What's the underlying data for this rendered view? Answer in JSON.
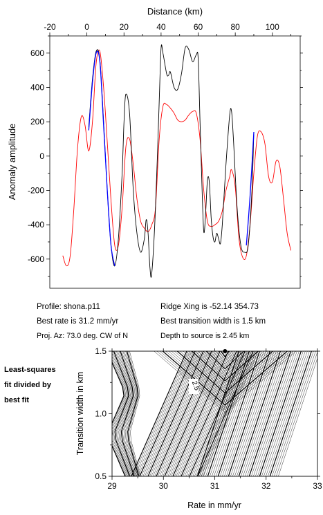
{
  "chart_data": [
    {
      "type": "line",
      "xlabel": "Distance (km)",
      "ylabel": "Anomaly amplitude",
      "xlim": [
        -20,
        115
      ],
      "ylim": [
        -770,
        700
      ],
      "xticks": [
        -20,
        0,
        20,
        40,
        60,
        80,
        100
      ],
      "yticks": [
        -600,
        -400,
        -200,
        0,
        200,
        400,
        600
      ],
      "series": [
        {
          "color": "#ff0000",
          "x": [
            -13,
            -11,
            -9,
            -7,
            -5,
            -3,
            -1,
            1,
            3,
            5,
            7,
            9,
            11,
            13,
            15,
            17,
            19,
            21,
            23,
            25,
            27,
            29,
            31,
            33,
            35,
            37,
            39,
            41,
            43,
            45,
            47,
            49,
            51,
            53,
            55,
            57,
            59,
            61,
            63,
            65,
            67,
            69,
            71,
            73,
            75,
            77,
            78,
            80,
            82,
            84,
            86,
            88,
            90,
            92,
            94,
            96,
            98,
            100,
            102,
            104,
            106,
            108,
            110
          ],
          "values": [
            -580,
            -640,
            -580,
            -300,
            50,
            230,
            180,
            30,
            200,
            540,
            610,
            400,
            80,
            -260,
            -520,
            -520,
            -300,
            50,
            100,
            -50,
            -250,
            -380,
            -420,
            -440,
            -400,
            -300,
            100,
            290,
            300,
            280,
            250,
            210,
            200,
            210,
            240,
            260,
            250,
            100,
            -200,
            -380,
            -410,
            -400,
            -380,
            -320,
            -200,
            -120,
            -80,
            -180,
            -480,
            -590,
            -580,
            -400,
            -100,
            120,
            140,
            70,
            -120,
            -150,
            -30,
            -60,
            -250,
            -450,
            -550
          ]
        },
        {
          "color": "#000000",
          "x": [
            1,
            3,
            5,
            7,
            9,
            11,
            13,
            15,
            17,
            19,
            20,
            21,
            23,
            25,
            27,
            29,
            31,
            32,
            33,
            34,
            35,
            37,
            39,
            40,
            41,
            43,
            44,
            45,
            47,
            49,
            51,
            53,
            55,
            57,
            59,
            60,
            61,
            62,
            63,
            64,
            65,
            66,
            67,
            68,
            69,
            70,
            71,
            72,
            73,
            75,
            77,
            78,
            79,
            81,
            83,
            85,
            87,
            89,
            90
          ],
          "values": [
            170,
            450,
            610,
            560,
            200,
            -200,
            -520,
            -640,
            -480,
            -100,
            200,
            360,
            250,
            -200,
            -450,
            -560,
            -480,
            -370,
            -450,
            -650,
            -680,
            -300,
            320,
            630,
            600,
            480,
            470,
            490,
            400,
            390,
            480,
            630,
            620,
            550,
            590,
            570,
            200,
            -160,
            -440,
            -340,
            -140,
            -150,
            -360,
            -470,
            -500,
            -450,
            -480,
            -510,
            -400,
            -50,
            240,
            260,
            100,
            -300,
            -520,
            -560,
            -520,
            -200,
            140
          ]
        },
        {
          "color": "#0000ff",
          "x": [
            1,
            3,
            5,
            7,
            9,
            11,
            13,
            15
          ],
          "values": [
            150,
            430,
            600,
            550,
            180,
            -200,
            -520,
            -640
          ]
        },
        {
          "color": "#0000ff",
          "x": [
            86,
            88,
            90
          ],
          "values": [
            -520,
            -230,
            140
          ]
        }
      ]
    },
    {
      "type": "contour",
      "xlabel": "Rate in mm/yr",
      "ylabel": "Transition width in km",
      "xlim": [
        29,
        33
      ],
      "ylim": [
        0.5,
        1.5
      ],
      "xticks": [
        "29",
        "30",
        "31",
        "32",
        "33"
      ],
      "yticks": [
        "0.5",
        "1.0",
        "1.5"
      ],
      "contour_label": "2.5",
      "best_fit": {
        "rate": 31.2,
        "width": 1.5
      }
    }
  ],
  "info": {
    "profile": "Profile: shona.p11",
    "best_rate": "Best rate is 31.2 mm/yr",
    "proj_az": "Proj. Az: 73.0 deg. CW of N",
    "ridge_xing": "Ridge Xing is -52.14 354.73",
    "best_width": "Best transition width is 1.5 km",
    "depth": "Depth to source is   2.45 km"
  },
  "side_note": [
    "Least-squares",
    "fit divided by",
    "best fit"
  ]
}
